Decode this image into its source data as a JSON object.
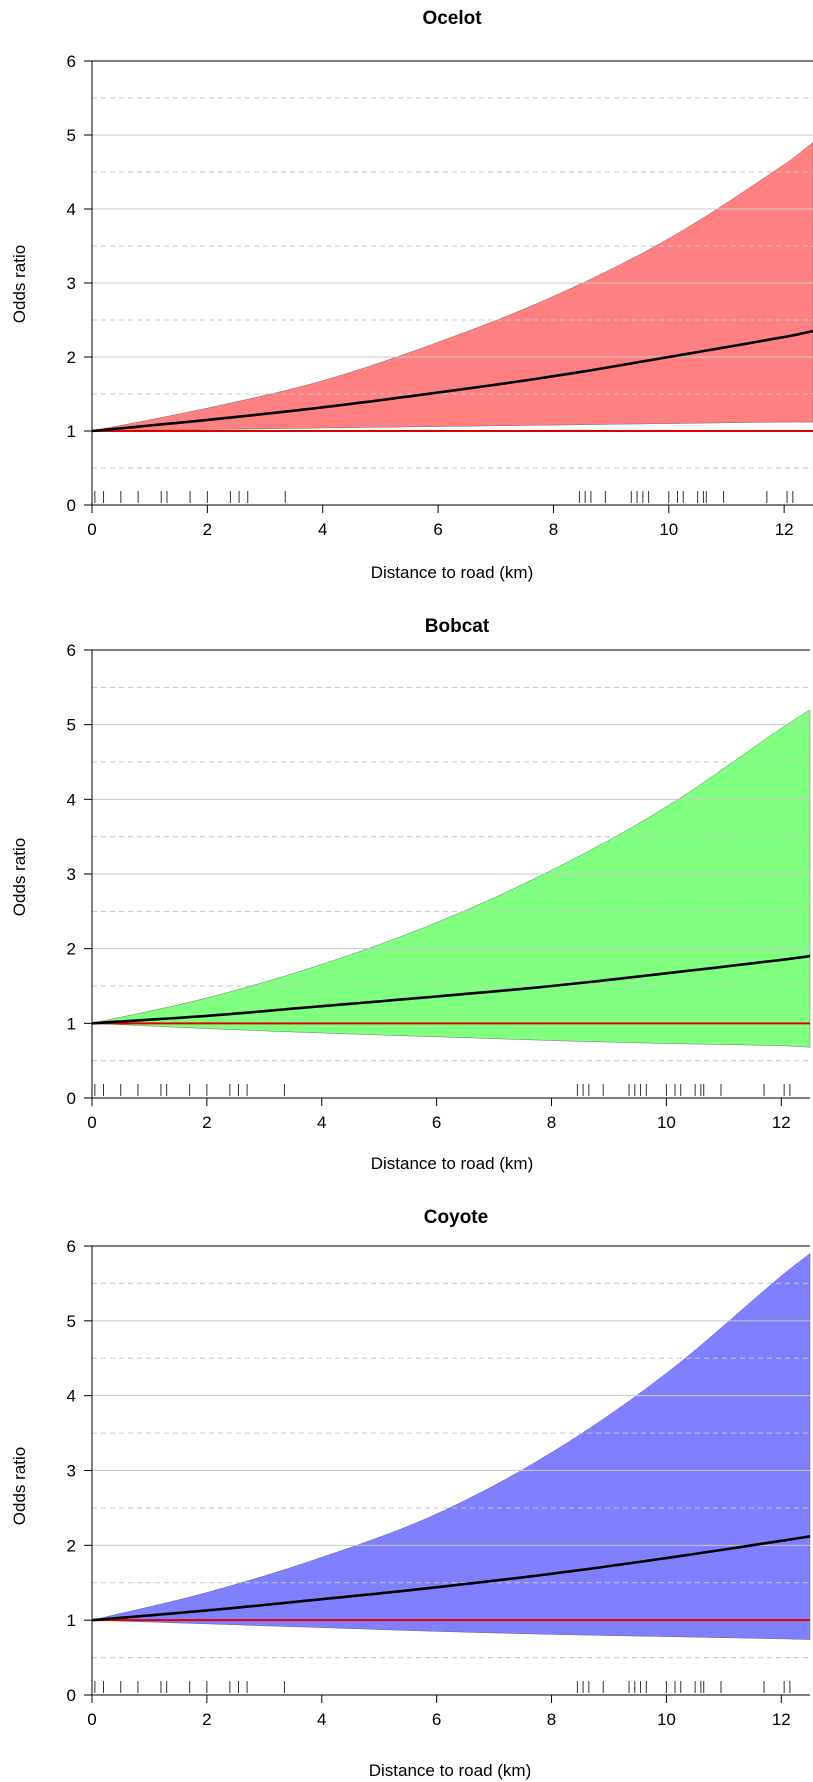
{
  "chart_data": [
    {
      "type": "area",
      "title": "Ocelot",
      "xlabel": "Distance to road (km)",
      "ylabel": "Odds ratio",
      "xlim": [
        0,
        12.5
      ],
      "ylim": [
        0,
        6
      ],
      "xticks": [
        0,
        2,
        4,
        6,
        8,
        10,
        12
      ],
      "yticks": [
        0,
        1,
        2,
        3,
        4,
        5,
        6
      ],
      "grid": true,
      "band_color": "#ff8080",
      "x": [
        0,
        2,
        4,
        6,
        8,
        10,
        12,
        12.5
      ],
      "series": [
        {
          "role": "estimate",
          "values": [
            1.0,
            1.15,
            1.32,
            1.52,
            1.74,
            2.0,
            2.27,
            2.35
          ]
        },
        {
          "role": "upper",
          "values": [
            1.0,
            1.31,
            1.68,
            2.2,
            2.82,
            3.6,
            4.6,
            4.9
          ]
        },
        {
          "role": "lower",
          "values": [
            1.0,
            1.02,
            1.04,
            1.06,
            1.08,
            1.1,
            1.12,
            1.12
          ]
        },
        {
          "role": "reference",
          "values": [
            1,
            1,
            1,
            1,
            1,
            1,
            1,
            1
          ]
        }
      ],
      "rug": [
        0.05,
        0.2,
        0.5,
        0.8,
        1.2,
        1.3,
        1.7,
        2.0,
        2.4,
        2.55,
        2.7,
        3.35,
        8.45,
        8.55,
        8.65,
        8.9,
        9.35,
        9.45,
        9.55,
        9.65,
        10.0,
        10.15,
        10.25,
        10.5,
        10.6,
        10.65,
        10.95,
        11.7,
        12.05,
        12.15
      ]
    },
    {
      "type": "area",
      "title": "Bobcat",
      "xlabel": "Distance to road (km)",
      "ylabel": "Odds ratio",
      "xlim": [
        0,
        12.5
      ],
      "ylim": [
        0,
        6
      ],
      "xticks": [
        0,
        2,
        4,
        6,
        8,
        10,
        12
      ],
      "yticks": [
        0,
        1,
        2,
        3,
        4,
        5,
        6
      ],
      "grid": true,
      "band_color": "#80ff80",
      "x": [
        0,
        2,
        4,
        6,
        8,
        10,
        12,
        12.5
      ],
      "series": [
        {
          "role": "estimate",
          "values": [
            1.0,
            1.1,
            1.23,
            1.36,
            1.5,
            1.67,
            1.85,
            1.9
          ]
        },
        {
          "role": "upper",
          "values": [
            1.0,
            1.34,
            1.79,
            2.35,
            3.05,
            3.9,
            4.95,
            5.2
          ]
        },
        {
          "role": "lower",
          "values": [
            1.0,
            0.93,
            0.87,
            0.82,
            0.77,
            0.73,
            0.7,
            0.68
          ]
        },
        {
          "role": "reference",
          "values": [
            1,
            1,
            1,
            1,
            1,
            1,
            1,
            1
          ]
        }
      ],
      "rug": [
        0.05,
        0.2,
        0.5,
        0.8,
        1.2,
        1.3,
        1.7,
        2.0,
        2.4,
        2.55,
        2.7,
        3.35,
        8.45,
        8.55,
        8.65,
        8.9,
        9.35,
        9.45,
        9.55,
        9.65,
        10.0,
        10.15,
        10.25,
        10.5,
        10.6,
        10.65,
        10.95,
        11.7,
        12.05,
        12.15
      ]
    },
    {
      "type": "area",
      "title": "Coyote",
      "xlabel": "Distance to road (km)",
      "ylabel": "Odds ratio",
      "xlim": [
        0,
        12.5
      ],
      "ylim": [
        0,
        6
      ],
      "xticks": [
        0,
        2,
        4,
        6,
        8,
        10,
        12
      ],
      "yticks": [
        0,
        1,
        2,
        3,
        4,
        5,
        6
      ],
      "grid": true,
      "band_color": "#8080ff",
      "x": [
        0,
        2,
        4,
        6,
        8,
        10,
        12,
        12.5
      ],
      "series": [
        {
          "role": "estimate",
          "values": [
            1.0,
            1.13,
            1.28,
            1.44,
            1.62,
            1.83,
            2.06,
            2.12
          ]
        },
        {
          "role": "upper",
          "values": [
            1.0,
            1.37,
            1.84,
            2.42,
            3.24,
            4.3,
            5.6,
            5.9
          ]
        },
        {
          "role": "lower",
          "values": [
            1.0,
            0.95,
            0.9,
            0.85,
            0.81,
            0.78,
            0.75,
            0.74
          ]
        },
        {
          "role": "reference",
          "values": [
            1,
            1,
            1,
            1,
            1,
            1,
            1,
            1
          ]
        }
      ],
      "rug": [
        0.05,
        0.2,
        0.5,
        0.8,
        1.2,
        1.3,
        1.7,
        2.0,
        2.4,
        2.55,
        2.7,
        3.35,
        8.45,
        8.55,
        8.65,
        8.9,
        9.35,
        9.45,
        9.55,
        9.65,
        10.0,
        10.15,
        10.25,
        10.5,
        10.6,
        10.65,
        10.95,
        11.7,
        12.05,
        12.15
      ]
    }
  ]
}
